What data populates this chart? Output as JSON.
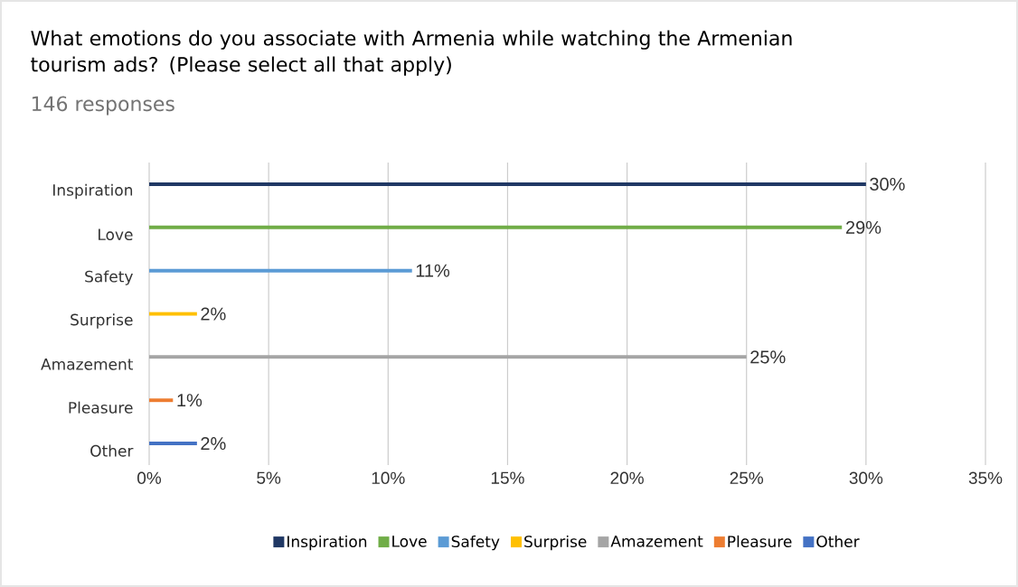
{
  "chart_data": {
    "type": "bar",
    "orientation": "horizontal",
    "title": "What emotions do you associate with Armenia while watching the Armenian tourism ads? (Please select all that apply)",
    "subtitle": "146 responses",
    "categories": [
      "Inspiration",
      "Love",
      "Safety",
      "Surprise",
      "Amazement",
      "Pleasure",
      "Other"
    ],
    "series": [
      {
        "name": "Inspiration",
        "color": "#203864",
        "values": [
          30,
          null,
          null,
          null,
          null,
          null,
          null
        ],
        "value_labels": [
          "30%",
          null,
          null,
          null,
          null,
          null,
          null
        ]
      },
      {
        "name": "Love",
        "color": "#70ad47",
        "values": [
          null,
          29,
          null,
          null,
          null,
          null,
          null
        ],
        "value_labels": [
          null,
          "29%",
          null,
          null,
          null,
          null,
          null
        ]
      },
      {
        "name": "Safety",
        "color": "#5b9bd5",
        "values": [
          null,
          null,
          11,
          null,
          null,
          null,
          null
        ],
        "value_labels": [
          null,
          null,
          "11%",
          null,
          null,
          null,
          null
        ]
      },
      {
        "name": "Surprise",
        "color": "#ffc000",
        "values": [
          null,
          null,
          null,
          2,
          null,
          null,
          null
        ],
        "value_labels": [
          null,
          null,
          null,
          "2%",
          null,
          null,
          null
        ]
      },
      {
        "name": "Amazement",
        "color": "#a5a5a5",
        "values": [
          null,
          null,
          null,
          null,
          25,
          null,
          null
        ],
        "value_labels": [
          null,
          null,
          null,
          null,
          "25%",
          null,
          null
        ]
      },
      {
        "name": "Pleasure",
        "color": "#ed7d31",
        "values": [
          null,
          null,
          null,
          null,
          null,
          1,
          null
        ],
        "value_labels": [
          null,
          null,
          null,
          null,
          null,
          "1%",
          null
        ]
      },
      {
        "name": "Other",
        "color": "#4472c4",
        "values": [
          null,
          null,
          null,
          null,
          null,
          null,
          2
        ],
        "value_labels": [
          null,
          null,
          null,
          null,
          null,
          null,
          "2%"
        ]
      }
    ],
    "xlim": [
      0,
      35
    ],
    "xticks": [
      {
        "value": 0,
        "label": "0%"
      },
      {
        "value": 5,
        "label": "5%"
      },
      {
        "value": 10,
        "label": "10%"
      },
      {
        "value": 15,
        "label": "15%"
      },
      {
        "value": 20,
        "label": "20%"
      },
      {
        "value": 25,
        "label": "25%"
      },
      {
        "value": 30,
        "label": "30%"
      },
      {
        "value": 35,
        "label": "35%"
      }
    ],
    "grid": "x",
    "legend": "bottom"
  }
}
